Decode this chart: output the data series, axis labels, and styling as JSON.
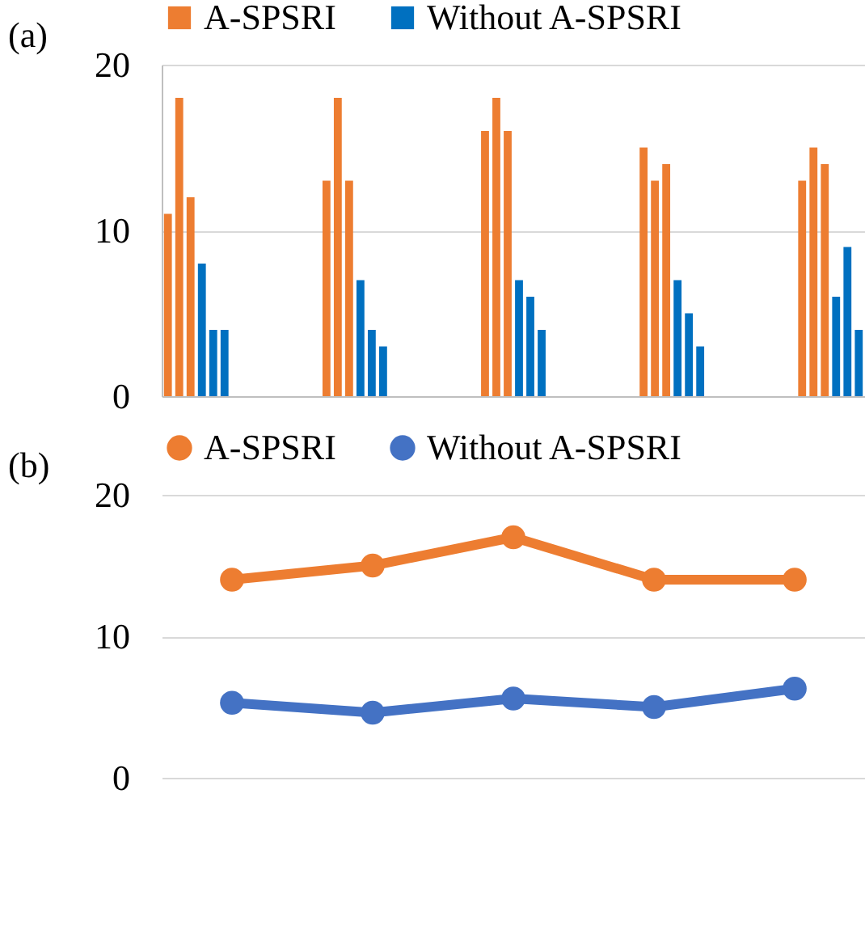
{
  "chart_data": [
    {
      "type": "bar",
      "title": "(a)",
      "categories": [
        null,
        null,
        null,
        null,
        null,
        null,
        null,
        null,
        null,
        null,
        null,
        null,
        null,
        null,
        null,
        null,
        null,
        null,
        null,
        null,
        null,
        null,
        null,
        null,
        null,
        null,
        null,
        null,
        null,
        null,
        null,
        null,
        null,
        null,
        null,
        null,
        null,
        null,
        null,
        null,
        null,
        null,
        null,
        null,
        null,
        null,
        null,
        null,
        null,
        null,
        null,
        null,
        null,
        null,
        null,
        null,
        null,
        null,
        null,
        null,
        null,
        null
      ],
      "series": [
        {
          "name": "A-SPSRI",
          "color": "#ed7d31",
          "values": [
            11,
            18,
            12,
            null,
            null,
            null,
            null,
            null,
            null,
            null,
            null,
            null,
            null,
            null,
            13,
            18,
            13,
            null,
            null,
            null,
            null,
            null,
            null,
            null,
            null,
            null,
            null,
            null,
            16,
            18,
            16,
            null,
            null,
            null,
            null,
            null,
            null,
            null,
            null,
            null,
            null,
            null,
            15,
            13,
            14,
            null,
            null,
            null,
            null,
            null,
            null,
            null,
            null,
            null,
            null,
            null,
            13,
            15,
            14,
            null,
            null,
            null
          ]
        },
        {
          "name": "Without A-SPSRI",
          "color": "#0070c0",
          "values": [
            null,
            null,
            null,
            8,
            4,
            4,
            null,
            null,
            null,
            null,
            null,
            null,
            null,
            null,
            null,
            null,
            null,
            7,
            4,
            3,
            null,
            null,
            null,
            null,
            null,
            null,
            null,
            null,
            null,
            null,
            null,
            7,
            6,
            4,
            null,
            null,
            null,
            null,
            null,
            null,
            null,
            null,
            null,
            null,
            null,
            7,
            5,
            3,
            null,
            null,
            null,
            null,
            null,
            null,
            null,
            null,
            null,
            null,
            null,
            6,
            9,
            4
          ]
        }
      ],
      "ylim": [
        0,
        20
      ],
      "yticks": [
        0,
        10,
        20
      ],
      "grid": "y",
      "legend": "top",
      "tick_labels": "y"
    },
    {
      "type": "line",
      "title": "(b)",
      "categories": [
        null,
        null,
        null,
        null,
        null
      ],
      "series": [
        {
          "name": "A-SPSRI",
          "color": "#ed7d31",
          "values": [
            14,
            15,
            17,
            14,
            14
          ]
        },
        {
          "name": "Without A-SPSRI",
          "color": "#4472c4",
          "values": [
            5.3,
            4.6,
            5.6,
            5.0,
            6.3
          ]
        }
      ],
      "ylim": [
        0,
        20
      ],
      "yticks": [
        0,
        10,
        20
      ],
      "grid": "y",
      "legend": "top",
      "tick_labels": "y",
      "marker": "circle",
      "line_style": "solid"
    }
  ]
}
